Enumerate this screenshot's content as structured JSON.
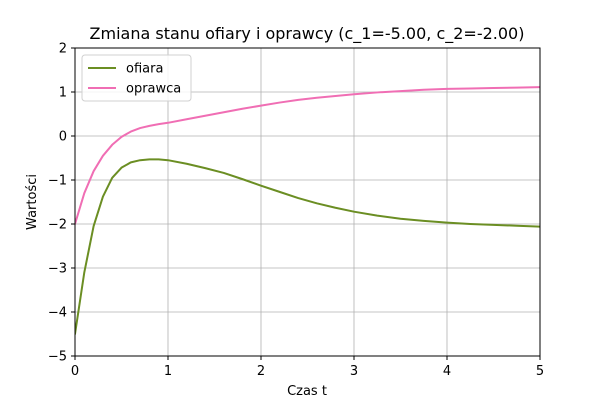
{
  "chart_data": {
    "type": "line",
    "title": "Zmiana stanu ofiary i oprawcy (c_1=-5.00, c_2=-2.00)",
    "xlabel": "Czas t",
    "ylabel": "Wartości",
    "xlim": [
      0,
      5
    ],
    "ylim": [
      -5,
      2
    ],
    "xticks": [
      0,
      1,
      2,
      3,
      4,
      5
    ],
    "yticks": [
      -5,
      -4,
      -3,
      -2,
      -1,
      0,
      1,
      2
    ],
    "xtick_labels": [
      "0",
      "1",
      "2",
      "3",
      "4",
      "5"
    ],
    "ytick_labels": [
      "−5",
      "−4",
      "−3",
      "−2",
      "−1",
      "0",
      "1",
      "2"
    ],
    "grid": true,
    "legend_position": "top-left",
    "series": [
      {
        "name": "ofiara",
        "color": "#6b8e23",
        "x": [
          0,
          0.1,
          0.2,
          0.3,
          0.4,
          0.5,
          0.6,
          0.7,
          0.8,
          0.9,
          1.0,
          1.2,
          1.4,
          1.6,
          1.8,
          2.0,
          2.2,
          2.4,
          2.6,
          2.8,
          3.0,
          3.25,
          3.5,
          3.75,
          4.0,
          4.25,
          4.5,
          4.75,
          5.0
        ],
        "y": [
          -4.5,
          -3.1,
          -2.05,
          -1.38,
          -0.95,
          -0.72,
          -0.6,
          -0.55,
          -0.53,
          -0.53,
          -0.55,
          -0.63,
          -0.73,
          -0.84,
          -0.98,
          -1.13,
          -1.27,
          -1.41,
          -1.53,
          -1.63,
          -1.72,
          -1.81,
          -1.88,
          -1.93,
          -1.97,
          -2.0,
          -2.02,
          -2.04,
          -2.06
        ]
      },
      {
        "name": "oprawca",
        "color": "#f06eb4",
        "x": [
          0,
          0.1,
          0.2,
          0.3,
          0.4,
          0.5,
          0.6,
          0.7,
          0.8,
          0.9,
          1.0,
          1.2,
          1.4,
          1.6,
          1.8,
          2.0,
          2.2,
          2.4,
          2.6,
          2.8,
          3.0,
          3.25,
          3.5,
          3.75,
          4.0,
          4.25,
          4.5,
          4.75,
          5.0
        ],
        "y": [
          -2.0,
          -1.3,
          -0.8,
          -0.45,
          -0.2,
          -0.02,
          0.1,
          0.18,
          0.23,
          0.27,
          0.3,
          0.38,
          0.46,
          0.54,
          0.62,
          0.69,
          0.76,
          0.82,
          0.87,
          0.91,
          0.95,
          0.99,
          1.02,
          1.05,
          1.07,
          1.08,
          1.09,
          1.1,
          1.11
        ]
      }
    ]
  }
}
